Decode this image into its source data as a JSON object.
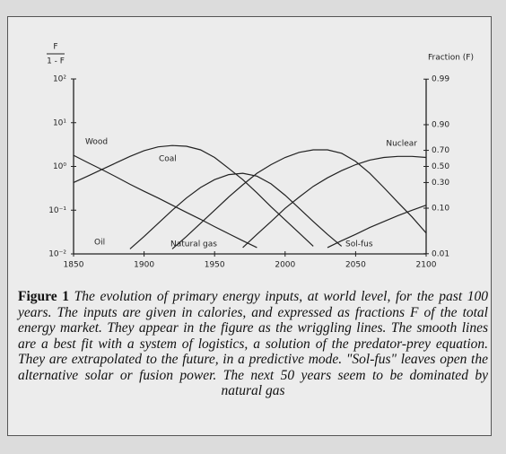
{
  "chart_data": {
    "type": "line",
    "ylabel": {
      "numerator": "F",
      "denominator": "1 - F"
    },
    "y2label": "Fraction (F)",
    "x": [
      1850,
      1860,
      1870,
      1880,
      1890,
      1900,
      1910,
      1920,
      1930,
      1940,
      1950,
      1960,
      1970,
      1980,
      1990,
      2000,
      2010,
      2020,
      2030,
      2040,
      2050,
      2060,
      2070,
      2080,
      2090,
      2100
    ],
    "xlim": [
      1850,
      2100
    ],
    "xticks": [
      1850,
      1900,
      1950,
      2000,
      2050,
      2100
    ],
    "ylim": [
      0.01,
      100
    ],
    "yscale": "log",
    "yticks": [
      {
        "value": 100,
        "label": "10²"
      },
      {
        "value": 10,
        "label": "10¹"
      },
      {
        "value": 1,
        "label": "10⁰"
      },
      {
        "value": 0.1,
        "label": "10⁻¹"
      },
      {
        "value": 0.01,
        "label": "10⁻²"
      }
    ],
    "y2scale": "logit",
    "y2ticks": [
      0.99,
      {
        "value": 0.9,
        "label": "0.90"
      },
      {
        "value": 0.7,
        "label": "0.70"
      },
      {
        "value": 0.5,
        "label": "0.50"
      },
      {
        "value": 0.3,
        "label": "0.30"
      },
      {
        "value": 0.1,
        "label": "0.10"
      },
      0.01
    ],
    "series": [
      {
        "name": "Wood",
        "color": "#222222",
        "values": [
          1.8,
          1.23,
          0.85,
          0.58,
          0.39,
          0.27,
          0.19,
          0.13,
          0.089,
          0.062,
          0.042,
          0.029,
          0.02,
          0.014,
          null,
          null,
          null,
          null,
          null,
          null,
          null,
          null,
          null,
          null,
          null,
          null
        ]
      },
      {
        "name": "Coal",
        "color": "#222222",
        "values": [
          0.43,
          0.6,
          0.85,
          1.2,
          1.7,
          2.3,
          2.8,
          3.0,
          2.9,
          2.4,
          1.6,
          0.9,
          0.5,
          0.25,
          0.12,
          0.06,
          0.03,
          0.015,
          null,
          null,
          null,
          null,
          null,
          null,
          null,
          null
        ]
      },
      {
        "name": "Oil",
        "color": "#222222",
        "values": [
          null,
          null,
          null,
          null,
          0.013,
          0.025,
          0.05,
          0.1,
          0.19,
          0.33,
          0.5,
          0.65,
          0.7,
          0.6,
          0.4,
          0.22,
          0.11,
          0.055,
          0.028,
          0.015,
          null,
          null,
          null,
          null,
          null,
          null
        ]
      },
      {
        "name": "Natural gas",
        "color": "#222222",
        "values": [
          null,
          null,
          null,
          null,
          null,
          null,
          null,
          0.013,
          0.025,
          0.05,
          0.1,
          0.2,
          0.38,
          0.7,
          1.1,
          1.6,
          2.1,
          2.4,
          2.4,
          2.0,
          1.3,
          0.7,
          0.33,
          0.15,
          0.07,
          0.03
        ]
      },
      {
        "name": "Nuclear",
        "color": "#222222",
        "values": [
          null,
          null,
          null,
          null,
          null,
          null,
          null,
          null,
          null,
          null,
          null,
          null,
          0.014,
          0.028,
          0.055,
          0.11,
          0.2,
          0.35,
          0.55,
          0.8,
          1.1,
          1.4,
          1.6,
          1.7,
          1.7,
          1.6
        ]
      },
      {
        "name": "Sol-fus",
        "color": "#222222",
        "values": [
          null,
          null,
          null,
          null,
          null,
          null,
          null,
          null,
          null,
          null,
          null,
          null,
          null,
          null,
          null,
          null,
          null,
          null,
          0.014,
          0.02,
          0.028,
          0.04,
          0.055,
          0.075,
          0.1,
          0.13
        ]
      }
    ]
  },
  "caption": {
    "label": "Figure 1",
    "text": "The evolution of primary energy inputs, at world level, for the past 100 years. The inputs are given in calories, and expressed as fractions F of the total energy market. They appear in the figure as the wriggling lines. The smooth lines are a best fit with a system of logistics, a solution of the predator-prey equation. They are extrapolated to the future, in a predictive mode. \"Sol-fus\" leaves open the alternative solar or fusion power. The next 50 years seem to be dominated by natural gas"
  }
}
